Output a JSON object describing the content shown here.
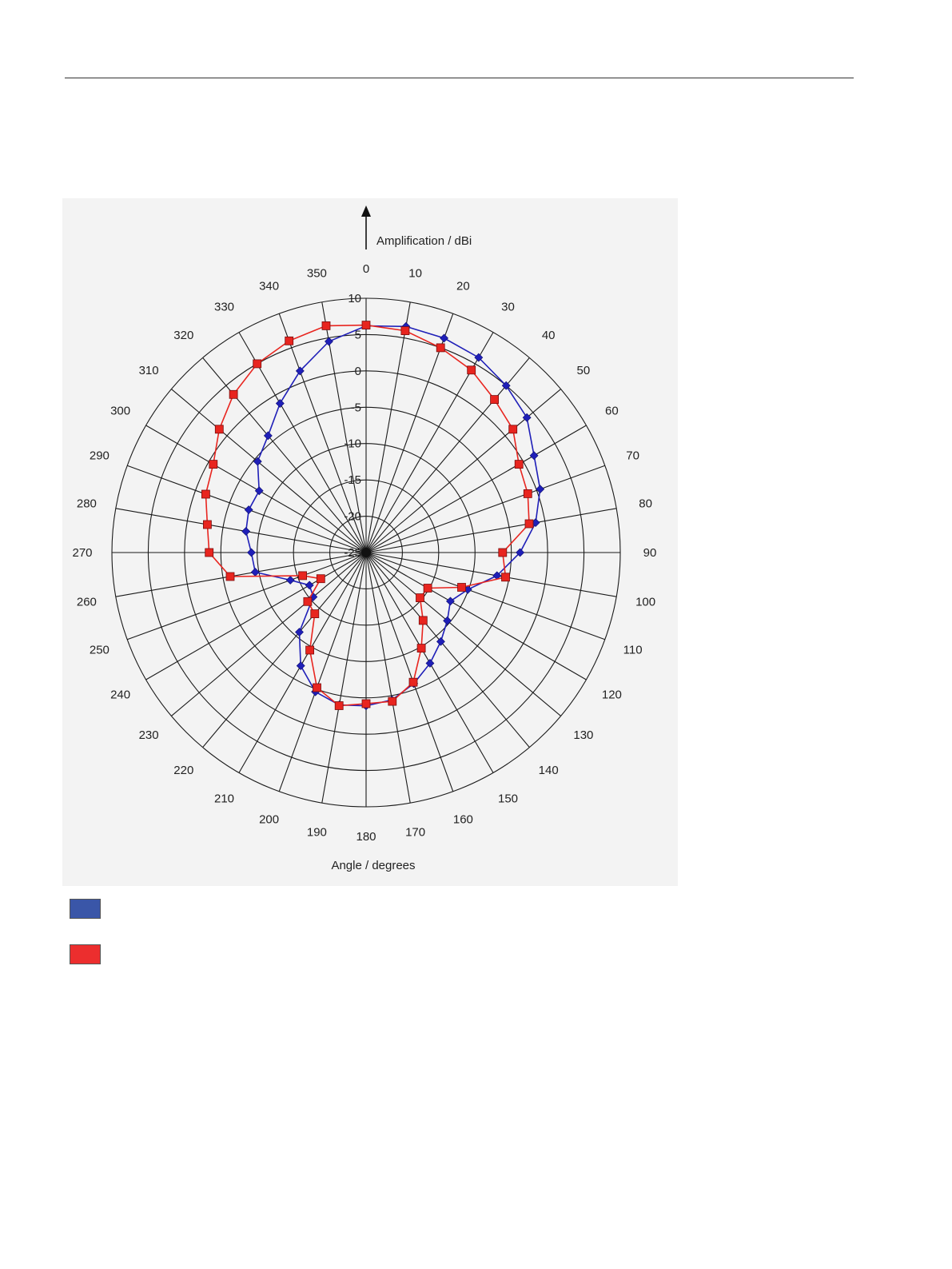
{
  "chart_data": {
    "type": "polar-line",
    "radial_axis": {
      "label": "Amplification / dBi",
      "range": [
        -25,
        10
      ],
      "ticks": [
        -25,
        -20,
        -15,
        -10,
        -5,
        0,
        5,
        10
      ],
      "tick_labels": [
        "-25",
        "-20",
        "-15",
        "-10",
        "-5",
        "0",
        "5",
        "10"
      ]
    },
    "angular_axis": {
      "label": "Angle / degrees",
      "step": 10,
      "direction": "clockwise",
      "zero": "top",
      "tick_labels": [
        "0",
        "10",
        "20",
        "30",
        "40",
        "50",
        "60",
        "70",
        "80",
        "90",
        "100",
        "110",
        "120",
        "130",
        "140",
        "150",
        "160",
        "170",
        "180",
        "190",
        "200",
        "210",
        "220",
        "230",
        "240",
        "250",
        "260",
        "270",
        "280",
        "290",
        "300",
        "310",
        "320",
        "330",
        "340",
        "350"
      ]
    },
    "grid": true,
    "series": [
      {
        "color": "#1f1fb8",
        "marker": "diamond",
        "points": [
          {
            "angle": 0,
            "value": 6.2
          },
          {
            "angle": 10,
            "value": 6.6
          },
          {
            "angle": 20,
            "value": 6.4
          },
          {
            "angle": 30,
            "value": 6.0
          },
          {
            "angle": 40,
            "value": 5.0
          },
          {
            "angle": 50,
            "value": 3.9
          },
          {
            "angle": 60,
            "value": 1.7
          },
          {
            "angle": 70,
            "value": 0.5
          },
          {
            "angle": 80,
            "value": -1.3
          },
          {
            "angle": 90,
            "value": -3.8
          },
          {
            "angle": 100,
            "value": -6.7
          },
          {
            "angle": 110,
            "value": -10.1
          },
          {
            "angle": 120,
            "value": -11.6
          },
          {
            "angle": 130,
            "value": -10.4
          },
          {
            "angle": 140,
            "value": -9.0
          },
          {
            "angle": 150,
            "value": -7.4
          },
          {
            "angle": 160,
            "value": -5.8
          },
          {
            "angle": 170,
            "value": -4.4
          },
          {
            "angle": 180,
            "value": -3.9
          },
          {
            "angle": 190,
            "value": -3.7
          },
          {
            "angle": 200,
            "value": -4.6
          },
          {
            "angle": 210,
            "value": -7.0
          },
          {
            "angle": 220,
            "value": -10.7
          },
          {
            "angle": 230,
            "value": -15.5
          },
          {
            "angle": 240,
            "value": -16.0
          },
          {
            "angle": 250,
            "value": -13.9
          },
          {
            "angle": 260,
            "value": -9.5
          },
          {
            "angle": 270,
            "value": -9.2
          },
          {
            "angle": 280,
            "value": -8.2
          },
          {
            "angle": 290,
            "value": -7.8
          },
          {
            "angle": 300,
            "value": -8.0
          },
          {
            "angle": 310,
            "value": -5.5
          },
          {
            "angle": 320,
            "value": -4.0
          },
          {
            "angle": 330,
            "value": -1.3
          },
          {
            "angle": 340,
            "value": 1.6
          },
          {
            "angle": 350,
            "value": 4.5
          }
        ]
      },
      {
        "color": "#e8251f",
        "marker": "square",
        "points": [
          {
            "angle": 0,
            "value": 6.3
          },
          {
            "angle": 10,
            "value": 6.0
          },
          {
            "angle": 20,
            "value": 5.0
          },
          {
            "angle": 30,
            "value": 4.0
          },
          {
            "angle": 40,
            "value": 2.5
          },
          {
            "angle": 50,
            "value": 1.4
          },
          {
            "angle": 60,
            "value": -0.7
          },
          {
            "angle": 70,
            "value": -1.3
          },
          {
            "angle": 80,
            "value": -2.2
          },
          {
            "angle": 90,
            "value": -6.2
          },
          {
            "angle": 100,
            "value": -5.5
          },
          {
            "angle": 110,
            "value": -11.0
          },
          {
            "angle": 120,
            "value": -15.2
          },
          {
            "angle": 130,
            "value": -15.3
          },
          {
            "angle": 140,
            "value": -12.8
          },
          {
            "angle": 150,
            "value": -9.8
          },
          {
            "angle": 160,
            "value": -6.0
          },
          {
            "angle": 170,
            "value": -4.2
          },
          {
            "angle": 180,
            "value": -4.2
          },
          {
            "angle": 190,
            "value": -3.6
          },
          {
            "angle": 200,
            "value": -5.2
          },
          {
            "angle": 210,
            "value": -9.5
          },
          {
            "angle": 220,
            "value": -14.0
          },
          {
            "angle": 230,
            "value": -14.5
          },
          {
            "angle": 240,
            "value": -17.8
          },
          {
            "angle": 250,
            "value": -15.7
          },
          {
            "angle": 260,
            "value": -6.0
          },
          {
            "angle": 270,
            "value": -3.4
          },
          {
            "angle": 280,
            "value": -2.8
          },
          {
            "angle": 290,
            "value": -1.5
          },
          {
            "angle": 300,
            "value": -0.7
          },
          {
            "angle": 310,
            "value": 1.4
          },
          {
            "angle": 320,
            "value": 3.4
          },
          {
            "angle": 330,
            "value": 5.0
          },
          {
            "angle": 340,
            "value": 6.0
          },
          {
            "angle": 350,
            "value": 6.7
          }
        ]
      }
    ],
    "legend": {
      "placement": "bottom-left",
      "entries": [
        {
          "color": "#3a56a8",
          "label": ""
        },
        {
          "color": "#ec2e2e",
          "label": ""
        }
      ]
    }
  }
}
